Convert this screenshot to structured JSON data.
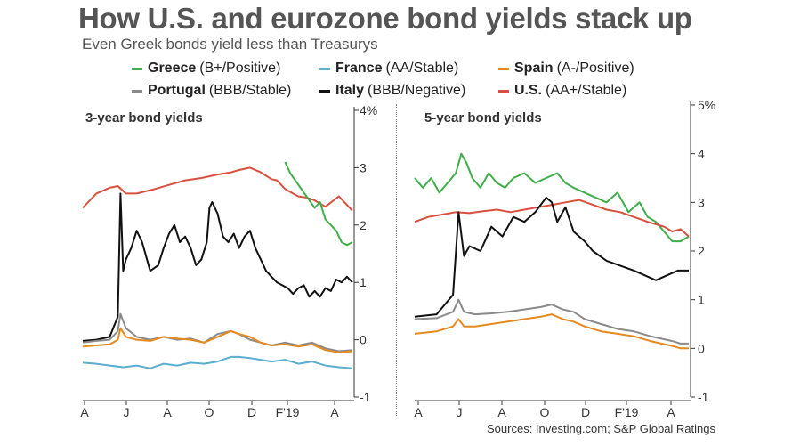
{
  "title": "How U.S. and eurozone bond yields stack up",
  "subtitle": "Even Greek bonds yield less than Treasurys",
  "legend": [
    {
      "name": "Greece",
      "rating": "(B+/Positive)",
      "color": "#3fae49"
    },
    {
      "name": "France",
      "rating": "(AA/Stable)",
      "color": "#5aaecf"
    },
    {
      "name": "Spain",
      "rating": "(A-/Positive)",
      "color": "#e58a1f"
    },
    {
      "name": "Portugal",
      "rating": "(BBB/Stable)",
      "color": "#8a8a8a"
    },
    {
      "name": "Italy",
      "rating": "(BBB/Negative)",
      "color": "#111111"
    },
    {
      "name": "U.S.",
      "rating": "(AA+/Stable)",
      "color": "#d9503f"
    }
  ],
  "sources": "Sources: Investing.com; S&P Global Ratings",
  "chart_data": [
    {
      "type": "line",
      "title": "3-year bond yields",
      "x_ticks": [
        "A",
        "J",
        "A",
        "O",
        "D",
        "F'19",
        "A"
      ],
      "y_ticks": [
        "4%",
        "3",
        "2",
        "1",
        "0",
        "-1"
      ],
      "ylim": [
        -1,
        4
      ],
      "grid": false,
      "series": [
        {
          "name": "U.S.",
          "color": "#d9503f",
          "x": [
            0,
            5,
            10,
            13,
            16,
            20,
            26,
            32,
            38,
            44,
            50,
            55,
            58,
            62,
            66,
            70,
            72,
            75,
            78,
            80,
            83,
            86,
            90,
            95,
            100
          ],
          "y": [
            2.3,
            2.55,
            2.65,
            2.68,
            2.55,
            2.55,
            2.62,
            2.7,
            2.78,
            2.82,
            2.88,
            2.92,
            2.96,
            3.0,
            2.92,
            2.8,
            2.78,
            2.63,
            2.55,
            2.5,
            2.48,
            2.43,
            2.32,
            2.5,
            2.25
          ]
        },
        {
          "name": "Greece",
          "color": "#3fae49",
          "x": [
            75,
            77,
            80,
            83,
            86,
            88,
            90,
            92,
            94,
            96,
            98,
            100
          ],
          "y": [
            3.1,
            2.9,
            2.7,
            2.5,
            2.3,
            2.4,
            2.1,
            2.0,
            1.9,
            1.7,
            1.65,
            1.7
          ]
        },
        {
          "name": "Italy",
          "color": "#111111",
          "x": [
            0,
            5,
            10,
            13,
            14,
            15,
            16,
            18,
            20,
            22,
            25,
            28,
            30,
            32,
            34,
            36,
            38,
            40,
            42,
            44,
            46,
            47,
            48,
            50,
            52,
            54,
            56,
            58,
            60,
            62,
            64,
            66,
            68,
            70,
            72,
            74,
            76,
            78,
            80,
            82,
            84,
            86,
            88,
            90,
            92,
            94,
            96,
            98,
            100
          ],
          "y": [
            -0.02,
            0.0,
            0.05,
            0.4,
            2.55,
            1.2,
            1.4,
            1.6,
            1.9,
            1.7,
            1.2,
            1.3,
            1.6,
            1.85,
            2.0,
            1.7,
            1.8,
            1.6,
            1.3,
            1.4,
            1.7,
            2.3,
            2.4,
            2.2,
            1.8,
            1.7,
            1.85,
            1.6,
            1.8,
            1.9,
            1.6,
            1.4,
            1.2,
            1.1,
            1.0,
            0.95,
            0.9,
            0.8,
            0.9,
            0.95,
            0.75,
            0.85,
            0.75,
            0.9,
            0.85,
            1.05,
            1.0,
            1.1,
            1.0
          ]
        },
        {
          "name": "Portugal",
          "color": "#8a8a8a",
          "x": [
            0,
            5,
            10,
            13,
            14,
            16,
            20,
            25,
            30,
            35,
            40,
            45,
            50,
            55,
            58,
            62,
            66,
            70,
            75,
            80,
            85,
            90,
            95,
            100
          ],
          "y": [
            -0.05,
            -0.02,
            0.0,
            0.15,
            0.45,
            0.2,
            0.05,
            0.0,
            0.05,
            0.0,
            0.02,
            -0.05,
            0.1,
            0.15,
            0.1,
            0.0,
            -0.05,
            -0.1,
            -0.05,
            -0.1,
            -0.05,
            -0.15,
            -0.2,
            -0.18
          ]
        },
        {
          "name": "Spain",
          "color": "#e58a1f",
          "x": [
            0,
            5,
            10,
            13,
            14,
            16,
            20,
            25,
            30,
            35,
            40,
            45,
            50,
            55,
            58,
            62,
            66,
            70,
            75,
            80,
            85,
            90,
            95,
            100
          ],
          "y": [
            -0.12,
            -0.1,
            -0.08,
            0.0,
            0.2,
            0.05,
            0.0,
            -0.02,
            0.05,
            0.02,
            0.0,
            -0.05,
            0.05,
            0.15,
            0.1,
            0.05,
            -0.05,
            -0.1,
            -0.08,
            -0.12,
            -0.08,
            -0.18,
            -0.22,
            -0.2
          ]
        },
        {
          "name": "France",
          "color": "#5aaecf",
          "x": [
            0,
            5,
            10,
            15,
            20,
            25,
            30,
            35,
            40,
            45,
            50,
            55,
            58,
            62,
            66,
            70,
            75,
            80,
            85,
            90,
            95,
            100
          ],
          "y": [
            -0.4,
            -0.42,
            -0.45,
            -0.48,
            -0.45,
            -0.5,
            -0.42,
            -0.45,
            -0.4,
            -0.42,
            -0.38,
            -0.3,
            -0.3,
            -0.32,
            -0.35,
            -0.38,
            -0.35,
            -0.42,
            -0.38,
            -0.45,
            -0.48,
            -0.5
          ]
        }
      ]
    },
    {
      "type": "line",
      "title": "5-year bond yields",
      "x_ticks": [
        "A",
        "J",
        "A",
        "O",
        "D",
        "F'19",
        "A"
      ],
      "y_ticks": [
        "5%",
        "4",
        "3",
        "2",
        "1",
        "0",
        "-1"
      ],
      "ylim": [
        -1,
        5
      ],
      "grid": false,
      "series": [
        {
          "name": "Greece",
          "color": "#3fae49",
          "x": [
            0,
            3,
            6,
            9,
            12,
            15,
            17,
            19,
            21,
            24,
            27,
            30,
            33,
            36,
            40,
            44,
            48,
            52,
            55,
            58,
            62,
            66,
            70,
            74,
            78,
            82,
            85,
            88,
            91,
            94,
            97,
            100
          ],
          "y": [
            3.5,
            3.3,
            3.5,
            3.2,
            3.4,
            3.6,
            4.0,
            3.8,
            3.5,
            3.3,
            3.6,
            3.4,
            3.3,
            3.5,
            3.6,
            3.4,
            3.5,
            3.6,
            3.4,
            3.3,
            3.2,
            3.1,
            3.0,
            3.2,
            2.8,
            3.0,
            2.7,
            2.6,
            2.4,
            2.2,
            2.2,
            2.3
          ]
        },
        {
          "name": "U.S.",
          "color": "#d9503f",
          "x": [
            0,
            5,
            10,
            15,
            20,
            25,
            30,
            35,
            40,
            45,
            50,
            55,
            60,
            65,
            70,
            75,
            80,
            85,
            88,
            91,
            94,
            97,
            100
          ],
          "y": [
            2.6,
            2.7,
            2.75,
            2.8,
            2.78,
            2.82,
            2.85,
            2.8,
            2.85,
            2.9,
            2.95,
            3.0,
            3.05,
            2.95,
            2.85,
            2.8,
            2.7,
            2.6,
            2.55,
            2.5,
            2.4,
            2.45,
            2.3
          ]
        },
        {
          "name": "Italy",
          "color": "#111111",
          "x": [
            0,
            8,
            14,
            16,
            18,
            20,
            24,
            28,
            32,
            36,
            40,
            44,
            48,
            50,
            52,
            55,
            58,
            62,
            65,
            70,
            75,
            80,
            84,
            88,
            92,
            96,
            100
          ],
          "y": [
            0.65,
            0.7,
            1.1,
            2.8,
            1.9,
            2.1,
            2.0,
            2.5,
            2.3,
            2.7,
            2.6,
            2.8,
            3.1,
            3.0,
            2.6,
            2.9,
            2.4,
            2.2,
            2.0,
            1.8,
            1.7,
            1.6,
            1.5,
            1.4,
            1.5,
            1.6,
            1.6
          ]
        },
        {
          "name": "Portugal",
          "color": "#8a8a8a",
          "x": [
            0,
            8,
            14,
            16,
            18,
            22,
            28,
            34,
            40,
            46,
            50,
            54,
            58,
            62,
            68,
            74,
            80,
            86,
            90,
            94,
            97,
            100
          ],
          "y": [
            0.6,
            0.62,
            0.75,
            1.0,
            0.75,
            0.7,
            0.72,
            0.75,
            0.8,
            0.85,
            0.9,
            0.8,
            0.75,
            0.6,
            0.5,
            0.4,
            0.35,
            0.25,
            0.2,
            0.15,
            0.1,
            0.1
          ]
        },
        {
          "name": "Spain",
          "color": "#e58a1f",
          "x": [
            0,
            8,
            14,
            16,
            18,
            22,
            28,
            34,
            40,
            46,
            50,
            54,
            58,
            62,
            68,
            74,
            80,
            86,
            90,
            94,
            97,
            100
          ],
          "y": [
            0.3,
            0.35,
            0.45,
            0.6,
            0.45,
            0.45,
            0.5,
            0.55,
            0.6,
            0.65,
            0.7,
            0.6,
            0.55,
            0.45,
            0.35,
            0.3,
            0.25,
            0.15,
            0.1,
            0.05,
            0.0,
            0.0
          ]
        }
      ]
    }
  ]
}
